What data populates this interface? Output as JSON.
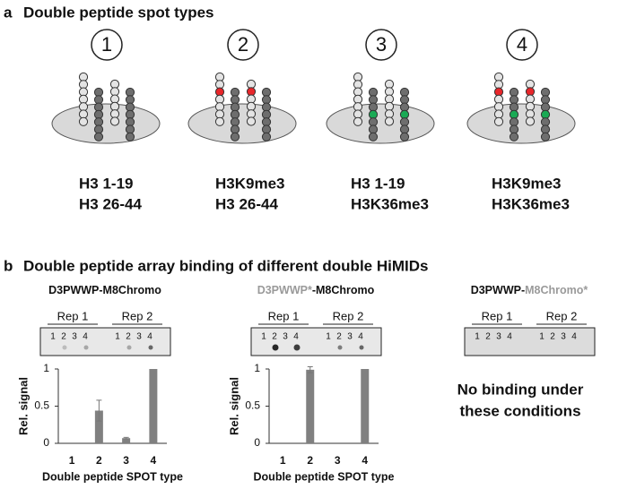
{
  "panel_a": {
    "label": "a",
    "title": "Double peptide spot types",
    "spots": [
      {
        "number": "1",
        "lines": [
          {
            "text": "H3 1-19",
            "color": "#9a9a9a"
          },
          {
            "text": "H3 26-44",
            "color": "#111111"
          }
        ]
      },
      {
        "number": "2",
        "lines": [
          {
            "text": "H3K9me3",
            "color": "#e8262a"
          },
          {
            "text": "H3 26-44",
            "color": "#111111"
          }
        ]
      },
      {
        "number": "3",
        "lines": [
          {
            "text": "H3 1-19",
            "color": "#9a9a9a"
          },
          {
            "text": "H3K36me3",
            "color": "#1aaa55"
          }
        ]
      },
      {
        "number": "4",
        "lines": [
          {
            "text": "H3K9me3",
            "color": "#e8262a"
          },
          {
            "text": "H3K36me3",
            "color": "#1aaa55"
          }
        ]
      }
    ]
  },
  "panel_b": {
    "label": "b",
    "title": "Double peptide array binding of different double HiMIDs",
    "blots": [
      {
        "title": [
          {
            "text": "D3PWWP-M8Chromo",
            "color": "#111111"
          }
        ],
        "reps": [
          "Rep 1",
          "Rep 2"
        ],
        "lanes": [
          "1",
          "2",
          "3",
          "4",
          "1",
          "2",
          "3",
          "4"
        ]
      },
      {
        "title": [
          {
            "text": "D3PWWP*",
            "color": "#9a9a9a"
          },
          {
            "text": "-M8Chromo",
            "color": "#111111"
          }
        ],
        "reps": [
          "Rep 1",
          "Rep 2"
        ],
        "lanes": [
          "1",
          "2",
          "3",
          "4",
          "1",
          "2",
          "3",
          "4"
        ]
      },
      {
        "title": [
          {
            "text": "D3PWWP-",
            "color": "#111111"
          },
          {
            "text": "M8Chromo*",
            "color": "#9a9a9a"
          }
        ],
        "reps": [
          "Rep 1",
          "Rep 2"
        ],
        "lanes": [
          "1",
          "2",
          "3",
          "4",
          "1",
          "2",
          "3",
          "4"
        ]
      }
    ],
    "no_binding": [
      "No binding under",
      "these conditions"
    ]
  },
  "chart_data": [
    {
      "type": "bar",
      "categories": [
        "1",
        "2",
        "3",
        "4"
      ],
      "values": [
        0,
        0.44,
        0.07,
        1
      ],
      "errors": [
        0,
        0.14,
        0.01,
        0
      ],
      "color": "#808080",
      "ylim": [
        0,
        1
      ],
      "yticks": [
        0,
        0.5,
        1
      ],
      "ylabel": "Rel. signal",
      "xlabel": "Double peptide SPOT type"
    },
    {
      "type": "bar",
      "categories": [
        "1",
        "2",
        "3",
        "4"
      ],
      "values": [
        0,
        0.99,
        0,
        1
      ],
      "errors": [
        0,
        0.04,
        0,
        0
      ],
      "color": "#808080",
      "ylim": [
        0,
        1
      ],
      "yticks": [
        0,
        0.5,
        1
      ],
      "ylabel": "Rel. signal",
      "xlabel": "Double peptide SPOT type"
    }
  ]
}
